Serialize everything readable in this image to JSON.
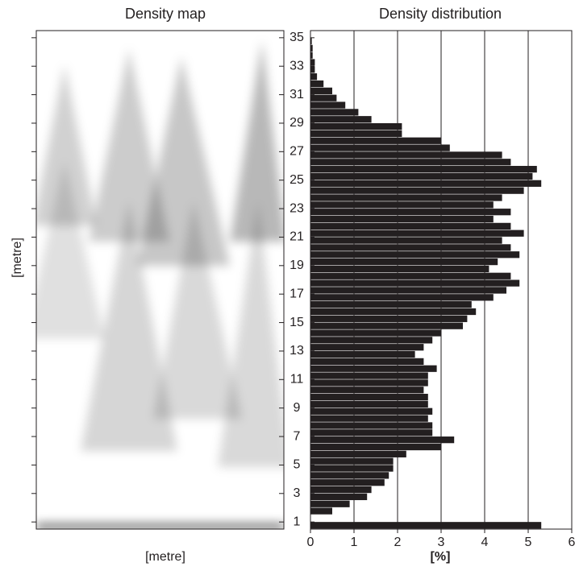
{
  "chart_data": [
    {
      "type": "image",
      "title": "Density map",
      "xlabel": "[metre]",
      "ylabel": "[metre]"
    },
    {
      "type": "histogram",
      "orientation": "horizontal",
      "title": "Density distribution",
      "xlabel": "[%]",
      "color": "#231f20",
      "grid": true,
      "xlim": [
        0,
        6
      ],
      "xticks": [
        0,
        1,
        2,
        3,
        4,
        5,
        6
      ],
      "ylim": [
        0.5,
        35.5
      ],
      "yticks": [
        1,
        3,
        5,
        7,
        9,
        11,
        13,
        15,
        17,
        19,
        21,
        23,
        25,
        27,
        29,
        31,
        33,
        35
      ],
      "bins": [
        0.5,
        1,
        1.5,
        2,
        2.5,
        3,
        3.5,
        4,
        4.5,
        5,
        5.5,
        6,
        6.5,
        7,
        7.5,
        8,
        8.5,
        9,
        9.5,
        10,
        10.5,
        11,
        11.5,
        12,
        12.5,
        13,
        13.5,
        14,
        14.5,
        15,
        15.5,
        16,
        16.5,
        17,
        17.5,
        18,
        18.5,
        19,
        19.5,
        20,
        20.5,
        21,
        21.5,
        22,
        22.5,
        23,
        23.5,
        24,
        24.5,
        25,
        25.5,
        26,
        26.5,
        27,
        27.5,
        28,
        28.5,
        29,
        29.5,
        30,
        30.5,
        31,
        31.5,
        32,
        32.5,
        33,
        33.5,
        34,
        34.5,
        35,
        35.5
      ],
      "values": [
        5.3,
        0,
        0.5,
        0.9,
        1.3,
        1.4,
        1.7,
        1.8,
        1.9,
        1.9,
        2.2,
        3.0,
        3.3,
        2.8,
        2.8,
        2.7,
        2.8,
        2.7,
        2.7,
        2.6,
        2.7,
        2.7,
        2.9,
        2.6,
        2.4,
        2.6,
        2.8,
        3.0,
        3.5,
        3.6,
        3.8,
        3.7,
        4.2,
        4.5,
        4.8,
        4.6,
        4.1,
        4.3,
        4.8,
        4.6,
        4.4,
        4.9,
        4.6,
        4.2,
        4.6,
        4.2,
        4.4,
        4.9,
        5.3,
        5.1,
        5.2,
        4.6,
        4.4,
        3.2,
        3.0,
        2.1,
        2.1,
        1.4,
        1.1,
        0.8,
        0.6,
        0.5,
        0.3,
        0.15,
        0.1,
        0.1,
        0.05,
        0.05,
        0.03,
        0
      ]
    }
  ]
}
